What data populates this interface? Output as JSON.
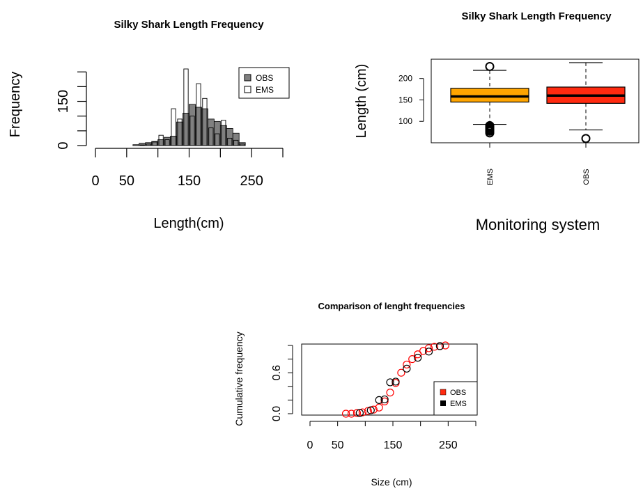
{
  "chart_data": [
    {
      "type": "bar",
      "title": "Silky Shark Length Frequency",
      "xlabel": "Length(cm)",
      "ylabel": "Frequency",
      "xlim": [
        0,
        300
      ],
      "ylim": [
        0,
        260
      ],
      "x_ticks": [
        "0",
        "50",
        "150",
        "250"
      ],
      "x_tick_values": [
        0,
        50,
        150,
        250
      ],
      "y_ticks": [
        "0",
        "150"
      ],
      "y_tick_values": [
        0,
        150
      ],
      "bin_width": 10,
      "bin_edges": [
        60,
        70,
        80,
        90,
        100,
        110,
        120,
        130,
        140,
        150,
        160,
        170,
        180,
        190,
        200,
        210,
        220,
        230,
        240
      ],
      "legend_position": "top-right",
      "series": [
        {
          "name": "OBS",
          "color": "#808080",
          "values": [
            3,
            8,
            10,
            14,
            20,
            28,
            32,
            80,
            110,
            140,
            130,
            125,
            90,
            82,
            68,
            58,
            42,
            10
          ]
        },
        {
          "name": "EMS",
          "color": "#ffffff",
          "values": [
            0,
            2,
            5,
            12,
            35,
            20,
            125,
            90,
            260,
            100,
            210,
            160,
            60,
            40,
            86,
            25,
            18,
            5
          ]
        }
      ]
    },
    {
      "type": "box",
      "title": "Silky Shark Length Frequency",
      "xlabel": "Monitoring system",
      "ylabel": "Length (cm)",
      "ylim": [
        50,
        245
      ],
      "y_ticks": [
        "100",
        "150",
        "200"
      ],
      "y_tick_values": [
        100,
        150,
        200
      ],
      "categories": [
        "EMS",
        "OBS"
      ],
      "boxes": [
        {
          "name": "EMS",
          "color": "#ffa500",
          "whisker_low": 93,
          "q1": 145,
          "median": 158,
          "q3": 177,
          "whisker_high": 219,
          "outliers": [
            73,
            77,
            80,
            83,
            86,
            88,
            90,
            228
          ]
        },
        {
          "name": "OBS",
          "color": "#ff2a10",
          "whisker_low": 80,
          "q1": 142,
          "median": 160,
          "q3": 180,
          "whisker_high": 237,
          "outliers": [
            60
          ]
        }
      ]
    },
    {
      "type": "scatter",
      "title": "Comparison of lenght frequencies",
      "xlabel": "Size (cm)",
      "ylabel": "Cumulative frequency",
      "xlim": [
        0,
        300
      ],
      "ylim": [
        0,
        1
      ],
      "x_ticks": [
        "0",
        "50",
        "150",
        "250"
      ],
      "x_tick_values": [
        0,
        50,
        150,
        250
      ],
      "y_ticks": [
        "0.0",
        "0.6"
      ],
      "y_tick_values": [
        0,
        0.6
      ],
      "legend_position": "bottom-right",
      "series": [
        {
          "name": "OBS",
          "color": "#ff0000",
          "x": [
            65,
            75,
            85,
            95,
            105,
            115,
            125,
            135,
            145,
            155,
            165,
            175,
            185,
            195,
            205,
            215,
            225,
            235,
            245
          ],
          "y": [
            0.0,
            0.0,
            0.01,
            0.02,
            0.04,
            0.06,
            0.09,
            0.18,
            0.31,
            0.45,
            0.6,
            0.72,
            0.8,
            0.87,
            0.92,
            0.96,
            0.98,
            0.99,
            1.0
          ]
        },
        {
          "name": "EMS",
          "color": "#000000",
          "x": [
            90,
            110,
            125,
            135,
            145,
            155,
            175,
            195,
            215,
            235
          ],
          "y": [
            0.01,
            0.05,
            0.2,
            0.21,
            0.46,
            0.47,
            0.66,
            0.82,
            0.91,
            0.99
          ]
        }
      ]
    }
  ]
}
